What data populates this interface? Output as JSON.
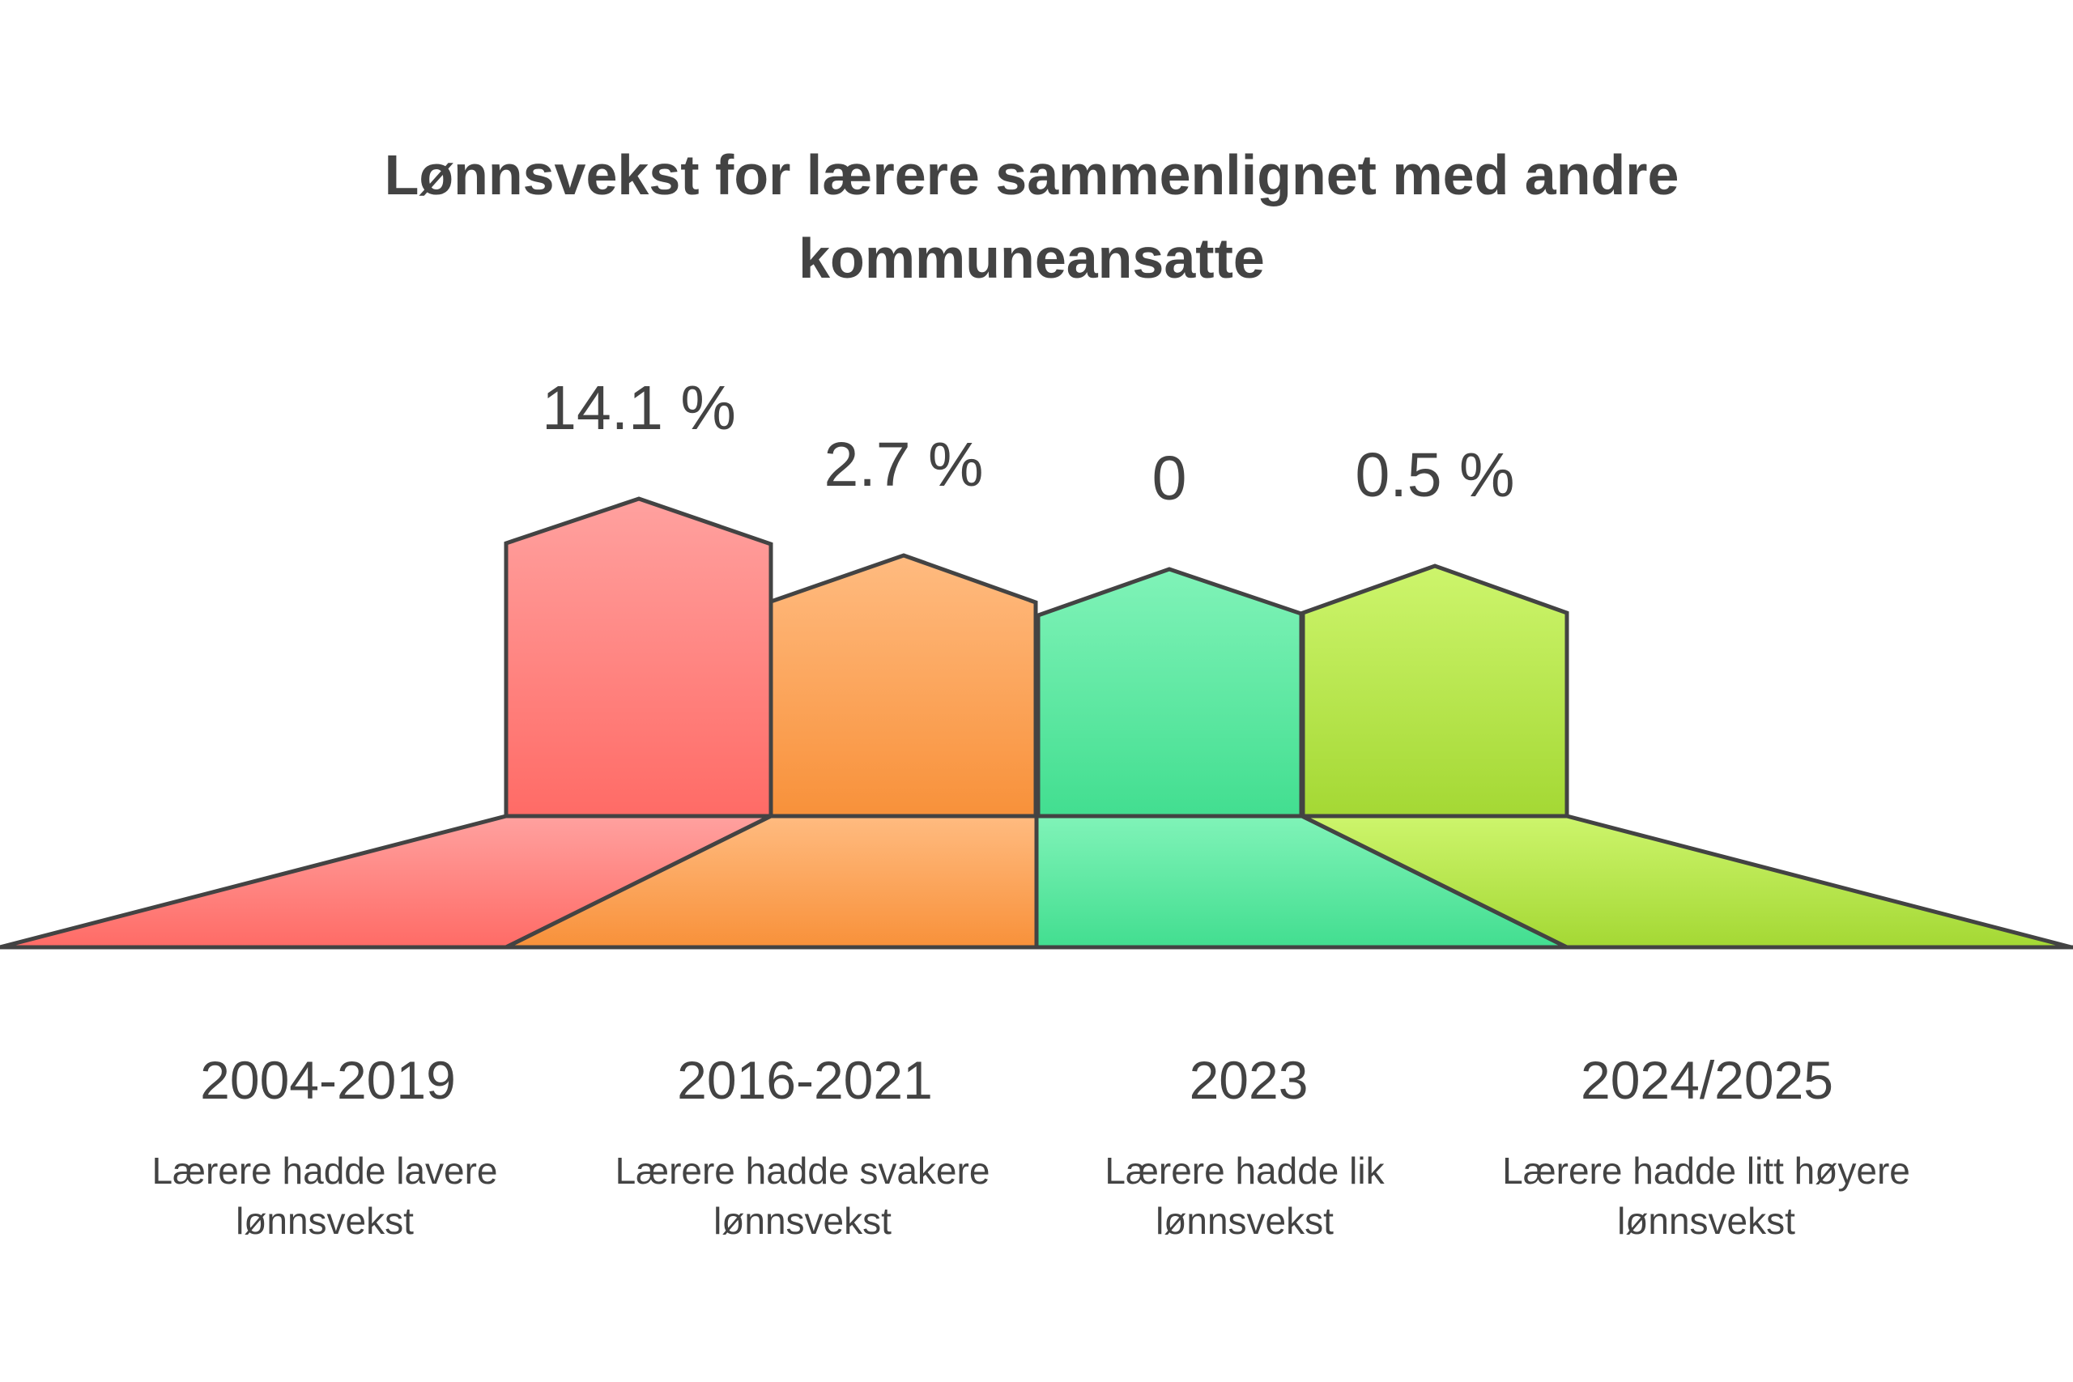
{
  "title_lines": [
    "Lønnsvekst for lærere sammenlignet med andre",
    "kommuneansatte"
  ],
  "items": [
    {
      "value": "14.1 %",
      "period": "2004-2019",
      "description_lines": [
        "Lærere hadde lavere",
        "lønnsvekst"
      ],
      "color_top": "#ffa19f",
      "color_bottom": "#ff6b66"
    },
    {
      "value": "2.7 %",
      "period": "2016-2021",
      "description_lines": [
        "Lærere hadde svakere",
        "lønnsvekst"
      ],
      "color_top": "#ffbb80",
      "color_bottom": "#f8913a"
    },
    {
      "value": "0",
      "period": "2023",
      "description_lines": [
        "Lærere hadde lik",
        "lønnsvekst"
      ],
      "color_top": "#80f3b8",
      "color_bottom": "#42de90"
    },
    {
      "value": "0.5 %",
      "period": "2024/2025",
      "description_lines": [
        "Lærere hadde litt høyere",
        "lønnsvekst"
      ],
      "color_top": "#cdf56c",
      "color_bottom": "#a4d834"
    }
  ],
  "outline_color": "#434343",
  "text_color": "#434343"
}
